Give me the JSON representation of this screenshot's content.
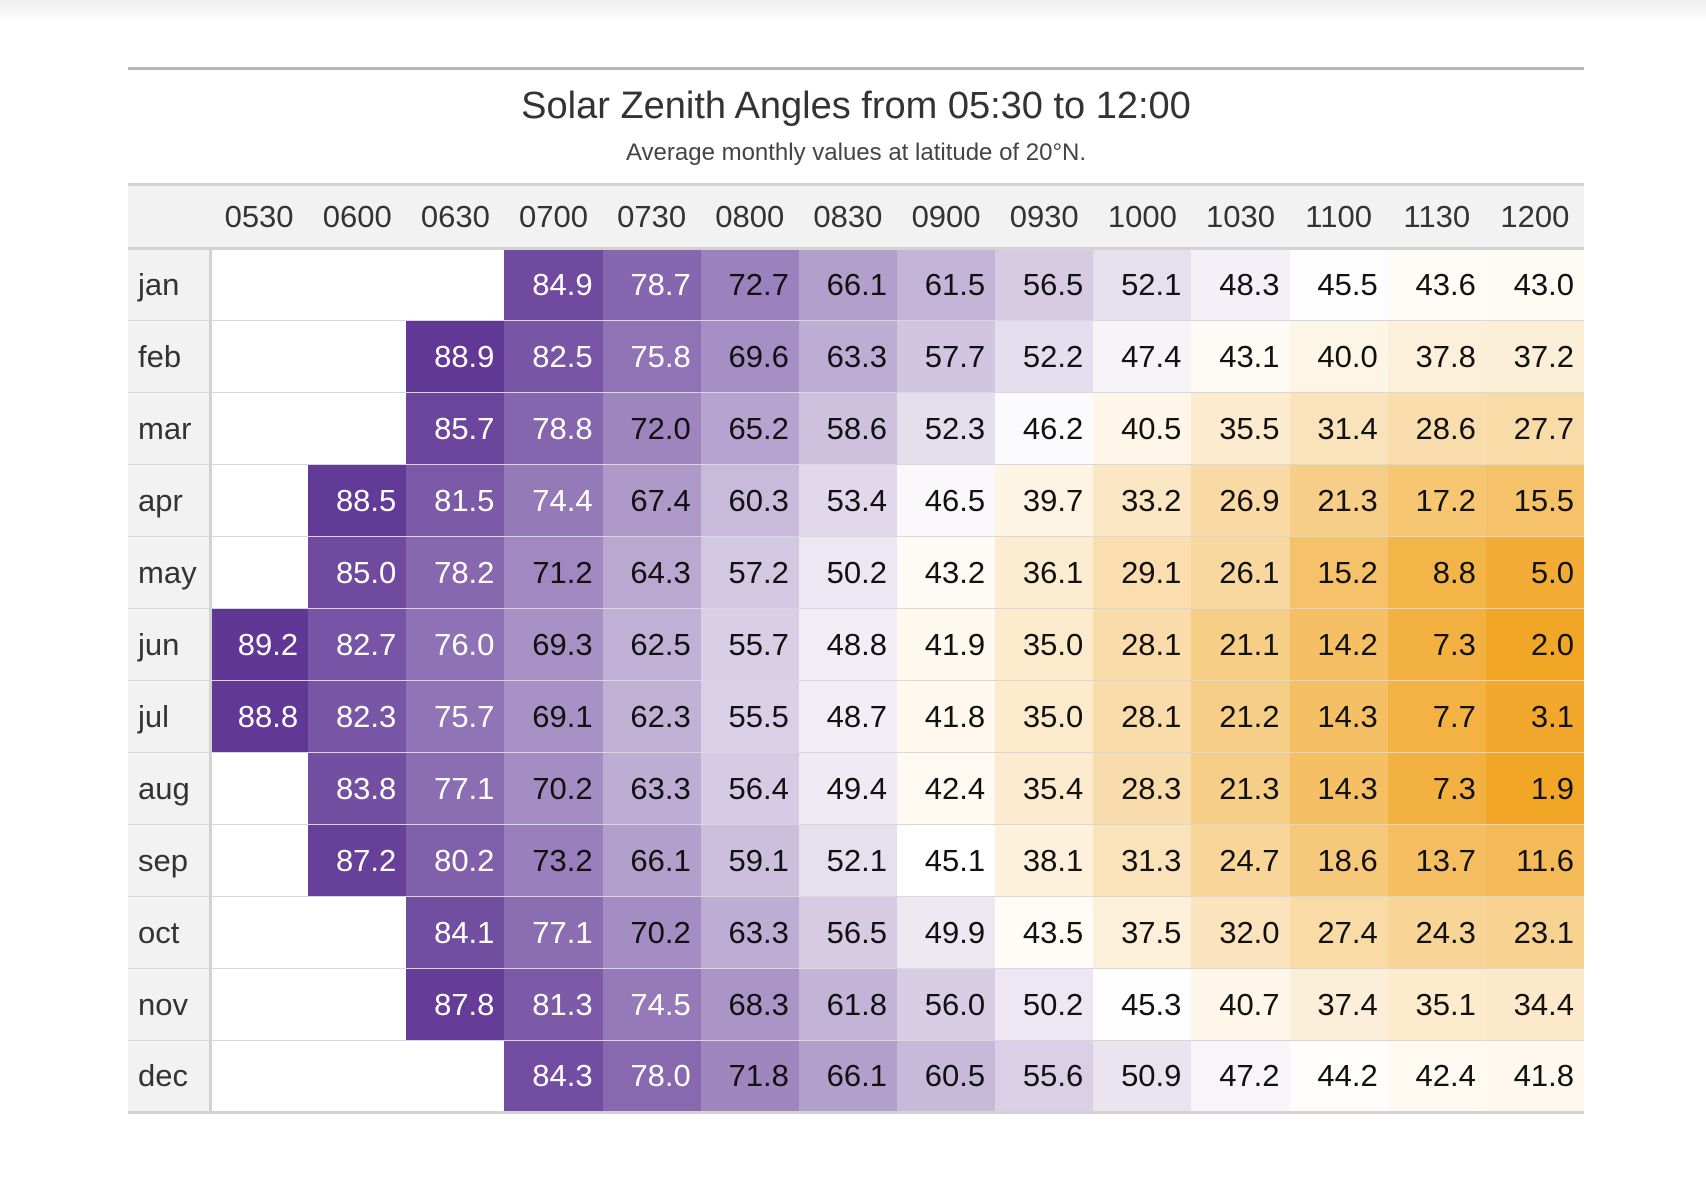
{
  "chart_data": {
    "type": "table",
    "title": "Solar Zenith Angles from 05:30 to 12:00",
    "subtitle": "Average monthly values at latitude of 20°N.",
    "columns": [
      "0530",
      "0600",
      "0630",
      "0700",
      "0730",
      "0800",
      "0830",
      "0900",
      "0930",
      "1000",
      "1030",
      "1100",
      "1130",
      "1200"
    ],
    "rows": [
      {
        "label": "jan",
        "values": [
          null,
          null,
          null,
          84.9,
          78.7,
          72.7,
          66.1,
          61.5,
          56.5,
          52.1,
          48.3,
          45.5,
          43.6,
          43.0
        ]
      },
      {
        "label": "feb",
        "values": [
          null,
          null,
          88.9,
          82.5,
          75.8,
          69.6,
          63.3,
          57.7,
          52.2,
          47.4,
          43.1,
          40.0,
          37.8,
          37.2
        ]
      },
      {
        "label": "mar",
        "values": [
          null,
          null,
          85.7,
          78.8,
          72.0,
          65.2,
          58.6,
          52.3,
          46.2,
          40.5,
          35.5,
          31.4,
          28.6,
          27.7
        ]
      },
      {
        "label": "apr",
        "values": [
          null,
          88.5,
          81.5,
          74.4,
          67.4,
          60.3,
          53.4,
          46.5,
          39.7,
          33.2,
          26.9,
          21.3,
          17.2,
          15.5
        ]
      },
      {
        "label": "may",
        "values": [
          null,
          85.0,
          78.2,
          71.2,
          64.3,
          57.2,
          50.2,
          43.2,
          36.1,
          29.1,
          26.1,
          15.2,
          8.8,
          5.0
        ]
      },
      {
        "label": "jun",
        "values": [
          89.2,
          82.7,
          76.0,
          69.3,
          62.5,
          55.7,
          48.8,
          41.9,
          35.0,
          28.1,
          21.1,
          14.2,
          7.3,
          2.0
        ]
      },
      {
        "label": "jul",
        "values": [
          88.8,
          82.3,
          75.7,
          69.1,
          62.3,
          55.5,
          48.7,
          41.8,
          35.0,
          28.1,
          21.2,
          14.3,
          7.7,
          3.1
        ]
      },
      {
        "label": "aug",
        "values": [
          null,
          83.8,
          77.1,
          70.2,
          63.3,
          56.4,
          49.4,
          42.4,
          35.4,
          28.3,
          21.3,
          14.3,
          7.3,
          1.9
        ]
      },
      {
        "label": "sep",
        "values": [
          null,
          87.2,
          80.2,
          73.2,
          66.1,
          59.1,
          52.1,
          45.1,
          38.1,
          31.3,
          24.7,
          18.6,
          13.7,
          11.6
        ]
      },
      {
        "label": "oct",
        "values": [
          null,
          null,
          84.1,
          77.1,
          70.2,
          63.3,
          56.5,
          49.9,
          43.5,
          37.5,
          32.0,
          27.4,
          24.3,
          23.1
        ]
      },
      {
        "label": "nov",
        "values": [
          null,
          null,
          87.8,
          81.3,
          74.5,
          68.3,
          61.8,
          56.0,
          50.2,
          45.3,
          40.7,
          37.4,
          35.1,
          34.4
        ]
      },
      {
        "label": "dec",
        "values": [
          null,
          null,
          null,
          84.3,
          78.0,
          71.8,
          66.1,
          60.5,
          55.6,
          50.9,
          47.2,
          44.2,
          42.4,
          41.8
        ]
      }
    ],
    "color_scale": {
      "low": "#f0a21c",
      "mid": "#ffffff",
      "high": "#5d3393",
      "range": [
        0,
        90
      ]
    },
    "stub_background": "#f2f2f2",
    "empty_cell_background": "#ffffff"
  }
}
